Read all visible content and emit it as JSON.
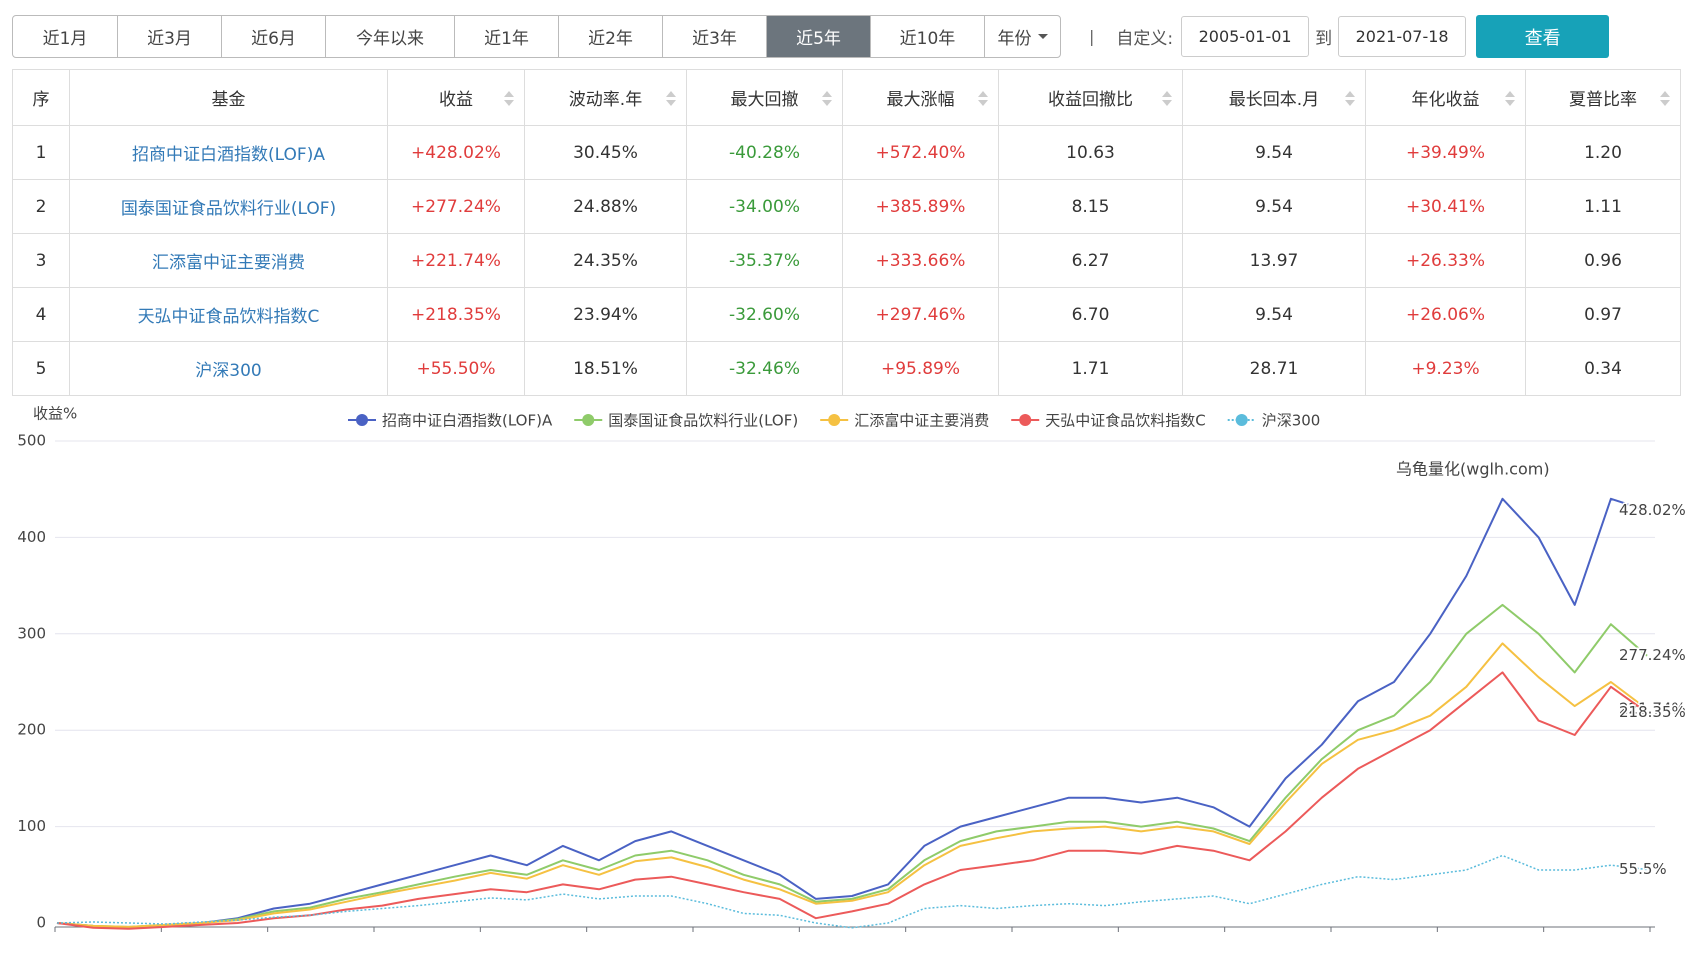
{
  "controls": {
    "ranges": [
      "近1月",
      "近3月",
      "近6月",
      "今年以来",
      "近1年",
      "近2年",
      "近3年",
      "近5年",
      "近10年",
      "年份"
    ],
    "active": 7,
    "custom_label": "自定义:",
    "start": "2005-01-01",
    "to": "到",
    "end": "2021-07-18",
    "button": "查看"
  },
  "table": {
    "columns": [
      "序",
      "基金",
      "收益",
      "波动率.年",
      "最大回撤",
      "最大涨幅",
      "收益回撤比",
      "最长回本.月",
      "年化收益",
      "夏普比率"
    ],
    "rows": [
      [
        "1",
        "招商中证白酒指数(LOF)A",
        "+428.02%",
        "30.45%",
        "-40.28%",
        "+572.40%",
        "10.63",
        "9.54",
        "+39.49%",
        "1.20"
      ],
      [
        "2",
        "国泰国证食品饮料行业(LOF)",
        "+277.24%",
        "24.88%",
        "-34.00%",
        "+385.89%",
        "8.15",
        "9.54",
        "+30.41%",
        "1.11"
      ],
      [
        "3",
        "汇添富中证主要消费",
        "+221.74%",
        "24.35%",
        "-35.37%",
        "+333.66%",
        "6.27",
        "13.97",
        "+26.33%",
        "0.96"
      ],
      [
        "4",
        "天弘中证食品饮料指数C",
        "+218.35%",
        "23.94%",
        "-32.60%",
        "+297.46%",
        "6.70",
        "9.54",
        "+26.06%",
        "0.97"
      ],
      [
        "5",
        "沪深300",
        "+55.50%",
        "18.51%",
        "-32.46%",
        "+95.89%",
        "1.71",
        "28.71",
        "+9.23%",
        "0.34"
      ]
    ]
  },
  "chart_data": {
    "type": "line",
    "ylabel": "收益%",
    "watermark": "乌龟量化(wglh.com)",
    "ylim": [
      0,
      500
    ],
    "yticks": [
      0,
      100,
      200,
      300,
      400,
      500
    ],
    "grid": true,
    "series": [
      {
        "name": "招商中证白酒指数(LOF)A",
        "color": "#4a62c4",
        "dashed": false,
        "values": [
          0,
          -3,
          -5,
          -2,
          0,
          5,
          15,
          20,
          30,
          40,
          50,
          60,
          70,
          60,
          80,
          65,
          85,
          95,
          80,
          65,
          50,
          25,
          28,
          40,
          80,
          100,
          110,
          120,
          130,
          130,
          125,
          130,
          120,
          100,
          150,
          185,
          230,
          250,
          300,
          360,
          440,
          400,
          330,
          440,
          428.02
        ],
        "value_labels": [
          null,
          null,
          null,
          null,
          null,
          null,
          null,
          null,
          null,
          null,
          null,
          null,
          null,
          null,
          null,
          null,
          null,
          null,
          null,
          null,
          null,
          null,
          null,
          null,
          null,
          null,
          null,
          null,
          null,
          null,
          null,
          null,
          null,
          null,
          null,
          null,
          null,
          null,
          null,
          null,
          null,
          null,
          null,
          null,
          "428.02%"
        ]
      },
      {
        "name": "国泰国证食品饮料行业(LOF)",
        "color": "#8fcb6a",
        "dashed": false,
        "values": [
          0,
          -3,
          -4,
          -2,
          0,
          4,
          12,
          16,
          25,
          32,
          40,
          48,
          55,
          50,
          65,
          55,
          70,
          75,
          65,
          50,
          40,
          22,
          25,
          35,
          65,
          85,
          95,
          100,
          105,
          105,
          100,
          105,
          98,
          85,
          130,
          170,
          200,
          215,
          250,
          300,
          330,
          300,
          260,
          310,
          277.24
        ],
        "value_labels": [
          null,
          null,
          null,
          null,
          null,
          null,
          null,
          null,
          null,
          null,
          null,
          null,
          null,
          null,
          null,
          null,
          null,
          null,
          null,
          null,
          null,
          null,
          null,
          null,
          null,
          null,
          null,
          null,
          null,
          null,
          null,
          null,
          null,
          null,
          null,
          null,
          null,
          null,
          null,
          null,
          null,
          null,
          null,
          null,
          "277.24%"
        ]
      },
      {
        "name": "汇添富中证主要消费",
        "color": "#f5c142",
        "dashed": false,
        "values": [
          0,
          -3,
          -4,
          -2,
          0,
          3,
          10,
          14,
          22,
          30,
          37,
          44,
          52,
          46,
          60,
          50,
          64,
          68,
          58,
          45,
          35,
          20,
          23,
          32,
          60,
          80,
          88,
          95,
          98,
          100,
          95,
          100,
          95,
          82,
          125,
          165,
          190,
          200,
          215,
          245,
          290,
          255,
          225,
          250,
          221.74
        ],
        "value_labels": [
          null,
          null,
          null,
          null,
          null,
          null,
          null,
          null,
          null,
          null,
          null,
          null,
          null,
          null,
          null,
          null,
          null,
          null,
          null,
          null,
          null,
          null,
          null,
          null,
          null,
          null,
          null,
          null,
          null,
          null,
          null,
          null,
          null,
          null,
          null,
          null,
          null,
          null,
          null,
          null,
          null,
          null,
          null,
          null,
          "221.74%"
        ]
      },
      {
        "name": "天弘中证食品饮料指数C",
        "color": "#ec5a5a",
        "dashed": false,
        "values": [
          0,
          -5,
          -6,
          -4,
          -2,
          0,
          5,
          8,
          14,
          18,
          25,
          30,
          35,
          32,
          40,
          35,
          45,
          48,
          40,
          32,
          25,
          5,
          12,
          20,
          40,
          55,
          60,
          65,
          75,
          75,
          72,
          80,
          75,
          65,
          95,
          130,
          160,
          180,
          200,
          230,
          260,
          210,
          195,
          245,
          218.35
        ],
        "value_labels": [
          null,
          null,
          null,
          null,
          null,
          null,
          null,
          null,
          null,
          null,
          null,
          null,
          null,
          null,
          null,
          null,
          null,
          null,
          null,
          null,
          null,
          null,
          null,
          null,
          null,
          null,
          null,
          null,
          null,
          null,
          null,
          null,
          null,
          null,
          null,
          null,
          null,
          null,
          null,
          null,
          null,
          null,
          null,
          null,
          "218.35%"
        ]
      },
      {
        "name": "沪深300",
        "color": "#5bbcdc",
        "dashed": true,
        "values": [
          0,
          1,
          0,
          -1,
          1,
          3,
          6,
          8,
          12,
          15,
          18,
          22,
          26,
          24,
          30,
          25,
          28,
          28,
          20,
          10,
          8,
          0,
          -5,
          0,
          15,
          18,
          15,
          18,
          20,
          18,
          22,
          25,
          28,
          20,
          30,
          40,
          48,
          45,
          50,
          55,
          70,
          55,
          55,
          60,
          55.5
        ],
        "value_labels": [
          null,
          null,
          null,
          null,
          null,
          null,
          null,
          null,
          null,
          null,
          null,
          null,
          null,
          null,
          null,
          null,
          null,
          null,
          null,
          null,
          null,
          null,
          null,
          null,
          null,
          null,
          null,
          null,
          null,
          null,
          null,
          null,
          null,
          null,
          null,
          null,
          null,
          null,
          null,
          null,
          null,
          null,
          null,
          null,
          "55.5%"
        ]
      }
    ]
  }
}
